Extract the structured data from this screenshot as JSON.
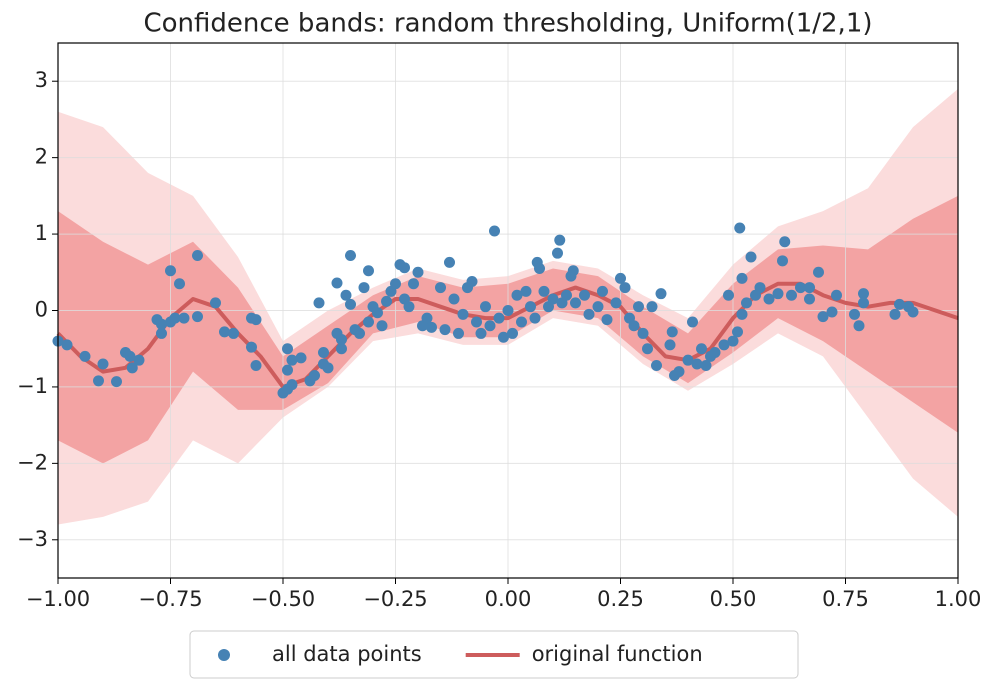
{
  "chart_data": {
    "type": "scatter",
    "title": "Confidence bands: random thresholding, Uniform(1/2,1)",
    "xlim": [
      -1,
      1
    ],
    "ylim": [
      -3.5,
      3.5
    ],
    "xticks": [
      {
        "value": -1,
        "label": "−1.00"
      },
      {
        "value": -0.75,
        "label": "−0.75"
      },
      {
        "value": -0.5,
        "label": "−0.50"
      },
      {
        "value": -0.25,
        "label": "−0.25"
      },
      {
        "value": 0,
        "label": "0.00"
      },
      0.25,
      {
        "value": 0.5,
        "label": "0.50"
      },
      0.75,
      {
        "value": 1,
        "label": "1.00"
      }
    ],
    "yticks": [
      {
        "value": -3,
        "label": "−3"
      },
      {
        "value": -2,
        "label": "−2"
      },
      {
        "value": -1,
        "label": "−1"
      },
      0,
      1,
      2,
      3
    ],
    "grid": true,
    "legend": "bottom",
    "bands": {
      "x": [
        -1,
        -0.9,
        -0.8,
        -0.7,
        -0.6,
        -0.5,
        -0.4,
        -0.3,
        -0.2,
        -0.1,
        0,
        0.1,
        0.2,
        0.3,
        0.4,
        0.5,
        0.6,
        0.7,
        0.8,
        0.9,
        1
      ],
      "levels": [
        {
          "color": "#fbdcdc",
          "upper": [
            2.6,
            2.4,
            1.8,
            1.5,
            0.7,
            -0.4,
            0.0,
            0.3,
            0.55,
            0.4,
            0.45,
            0.65,
            0.55,
            0.2,
            -0.1,
            0.6,
            1.1,
            1.3,
            1.6,
            2.4,
            2.9
          ],
          "lower": [
            -2.8,
            -2.7,
            -2.5,
            -1.7,
            -2.0,
            -1.4,
            -1.0,
            -0.4,
            -0.3,
            -0.45,
            -0.45,
            -0.1,
            -0.2,
            -0.7,
            -1.05,
            -0.7,
            -0.3,
            -0.6,
            -1.4,
            -2.2,
            -2.7
          ]
        },
        {
          "color": "#f3a3a3",
          "upper": [
            1.3,
            0.9,
            0.6,
            0.9,
            0.3,
            -0.6,
            -0.2,
            0.2,
            0.45,
            0.3,
            0.35,
            0.55,
            0.45,
            0.05,
            -0.3,
            0.35,
            0.8,
            0.85,
            0.8,
            1.2,
            1.5
          ],
          "lower": [
            -1.7,
            -2.0,
            -1.7,
            -0.8,
            -1.3,
            -1.3,
            -0.95,
            -0.3,
            -0.15,
            -0.35,
            -0.35,
            0.0,
            -0.1,
            -0.6,
            -0.95,
            -0.55,
            -0.1,
            -0.4,
            -0.8,
            -1.2,
            -1.6
          ]
        }
      ]
    },
    "series": [
      {
        "name": "all data points",
        "type": "scatter",
        "color": "#4682b4",
        "x": [
          -1.0,
          -0.98,
          -0.94,
          -0.91,
          -0.9,
          -0.87,
          -0.85,
          -0.84,
          -0.835,
          -0.82,
          -0.78,
          -0.77,
          -0.77,
          -0.75,
          -0.75,
          -0.74,
          -0.73,
          -0.72,
          -0.69,
          -0.69,
          -0.65,
          -0.63,
          -0.61,
          -0.57,
          -0.57,
          -0.56,
          -0.56,
          -0.5,
          -0.49,
          -0.49,
          -0.49,
          -0.48,
          -0.48,
          -0.46,
          -0.44,
          -0.43,
          -0.42,
          -0.41,
          -0.41,
          -0.4,
          -0.38,
          -0.38,
          -0.37,
          -0.37,
          -0.36,
          -0.35,
          -0.35,
          -0.34,
          -0.33,
          -0.32,
          -0.31,
          -0.31,
          -0.3,
          -0.29,
          -0.28,
          -0.27,
          -0.26,
          -0.25,
          -0.24,
          -0.23,
          -0.23,
          -0.22,
          -0.21,
          -0.2,
          -0.19,
          -0.18,
          -0.17,
          -0.15,
          -0.14,
          -0.13,
          -0.12,
          -0.11,
          -0.1,
          -0.09,
          -0.08,
          -0.07,
          -0.06,
          -0.05,
          -0.04,
          -0.03,
          -0.02,
          -0.01,
          0.0,
          0.01,
          0.02,
          0.03,
          0.04,
          0.05,
          0.06,
          0.065,
          0.07,
          0.08,
          0.09,
          0.1,
          0.11,
          0.115,
          0.12,
          0.13,
          0.14,
          0.145,
          0.15,
          0.17,
          0.18,
          0.2,
          0.21,
          0.22,
          0.24,
          0.25,
          0.26,
          0.27,
          0.28,
          0.29,
          0.3,
          0.31,
          0.32,
          0.33,
          0.34,
          0.36,
          0.365,
          0.37,
          0.38,
          0.4,
          0.41,
          0.42,
          0.43,
          0.44,
          0.45,
          0.46,
          0.48,
          0.49,
          0.5,
          0.51,
          0.515,
          0.52,
          0.52,
          0.53,
          0.54,
          0.55,
          0.56,
          0.58,
          0.6,
          0.61,
          0.615,
          0.63,
          0.65,
          0.67,
          0.67,
          0.69,
          0.7,
          0.72,
          0.73,
          0.77,
          0.78,
          0.79,
          0.79,
          0.86,
          0.87,
          0.89,
          0.9
        ],
        "values": [
          -0.4,
          -0.45,
          -0.6,
          -0.92,
          -0.7,
          -0.93,
          -0.55,
          -0.6,
          -0.75,
          -0.65,
          -0.12,
          -0.3,
          -0.18,
          -0.15,
          0.52,
          -0.1,
          0.35,
          -0.1,
          0.72,
          -0.08,
          0.1,
          -0.28,
          -0.3,
          -0.1,
          -0.48,
          -0.72,
          -0.12,
          -1.08,
          -1.03,
          -0.5,
          -0.78,
          -0.97,
          -0.65,
          -0.62,
          -0.92,
          -0.85,
          0.1,
          -0.7,
          -0.55,
          -0.75,
          -0.3,
          0.36,
          -0.5,
          -0.38,
          0.2,
          0.72,
          0.08,
          -0.25,
          -0.3,
          0.3,
          -0.15,
          0.52,
          0.05,
          -0.03,
          -0.2,
          0.12,
          0.25,
          0.35,
          0.6,
          0.56,
          0.15,
          0.05,
          0.35,
          0.5,
          -0.2,
          -0.1,
          -0.22,
          0.3,
          -0.25,
          0.63,
          0.15,
          -0.3,
          -0.05,
          0.3,
          0.38,
          -0.15,
          -0.3,
          0.05,
          -0.2,
          1.04,
          -0.1,
          -0.35,
          0.0,
          -0.3,
          0.2,
          -0.15,
          0.25,
          0.05,
          -0.1,
          0.63,
          0.55,
          0.25,
          0.05,
          0.15,
          0.75,
          0.92,
          0.1,
          0.2,
          0.45,
          0.52,
          0.1,
          0.2,
          -0.05,
          0.05,
          0.25,
          -0.12,
          0.1,
          0.42,
          0.3,
          -0.1,
          -0.2,
          0.05,
          -0.3,
          -0.5,
          0.05,
          -0.72,
          0.22,
          -0.45,
          -0.28,
          -0.85,
          -0.8,
          -0.65,
          -0.15,
          -0.7,
          -0.5,
          -0.72,
          -0.6,
          -0.55,
          -0.45,
          0.2,
          -0.4,
          -0.28,
          1.08,
          -0.05,
          0.42,
          0.1,
          0.7,
          0.2,
          0.3,
          0.15,
          0.22,
          0.65,
          0.9,
          0.2,
          0.3,
          0.3,
          0.15,
          0.5,
          -0.08,
          -0.02,
          0.2,
          -0.05,
          -0.2,
          0.22,
          0.1,
          -0.05,
          0.08,
          0.05,
          -0.02
        ]
      },
      {
        "name": "original function",
        "type": "line",
        "color": "#cd5c5c",
        "x": [
          -1,
          -0.95,
          -0.9,
          -0.85,
          -0.8,
          -0.75,
          -0.7,
          -0.65,
          -0.6,
          -0.55,
          -0.5,
          -0.45,
          -0.4,
          -0.35,
          -0.3,
          -0.25,
          -0.2,
          -0.15,
          -0.1,
          -0.05,
          0,
          0.05,
          0.1,
          0.15,
          0.2,
          0.25,
          0.3,
          0.35,
          0.4,
          0.45,
          0.5,
          0.55,
          0.6,
          0.65,
          0.7,
          0.75,
          0.8,
          0.85,
          0.9,
          0.95,
          1
        ],
        "values": [
          -0.3,
          -0.6,
          -0.8,
          -0.75,
          -0.5,
          -0.1,
          0.15,
          0.05,
          -0.3,
          -0.6,
          -1.0,
          -0.9,
          -0.6,
          -0.3,
          -0.05,
          0.15,
          0.15,
          0.05,
          -0.05,
          -0.1,
          -0.1,
          0.05,
          0.2,
          0.3,
          0.2,
          0.05,
          -0.3,
          -0.6,
          -0.65,
          -0.5,
          -0.1,
          0.2,
          0.35,
          0.35,
          0.2,
          0.1,
          0.05,
          0.1,
          0.1,
          0.0,
          -0.1
        ]
      }
    ]
  }
}
